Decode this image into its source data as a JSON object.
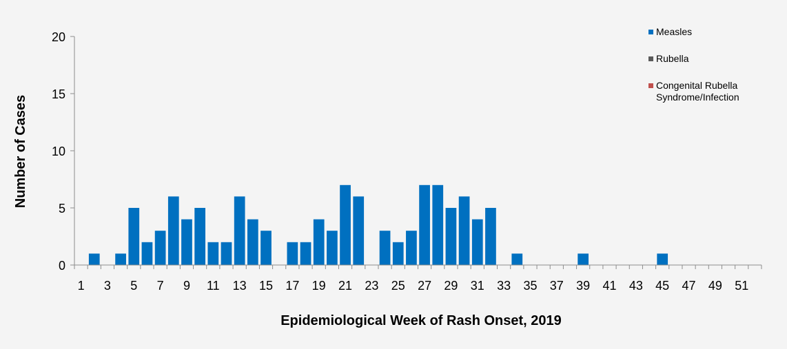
{
  "chart_data": {
    "type": "bar",
    "xlabel": "Epidemiological Week of Rash Onset, 2019",
    "ylabel": "Number of Cases",
    "ylim": [
      0,
      20
    ],
    "yticks": [
      0,
      5,
      10,
      15,
      20
    ],
    "grid": false,
    "legend_position": "top-right",
    "x_tick_labels": [
      "1",
      "3",
      "5",
      "7",
      "9",
      "11",
      "13",
      "15",
      "17",
      "19",
      "21",
      "23",
      "25",
      "27",
      "29",
      "31",
      "33",
      "35",
      "37",
      "39",
      "41",
      "43",
      "45",
      "47",
      "49",
      "51"
    ],
    "categories": [
      1,
      2,
      3,
      4,
      5,
      6,
      7,
      8,
      9,
      10,
      11,
      12,
      13,
      14,
      15,
      16,
      17,
      18,
      19,
      20,
      21,
      22,
      23,
      24,
      25,
      26,
      27,
      28,
      29,
      30,
      31,
      32,
      33,
      34,
      35,
      36,
      37,
      38,
      39,
      40,
      41,
      42,
      43,
      44,
      45,
      46,
      47,
      48,
      49,
      50,
      51,
      52
    ],
    "series": [
      {
        "name": "Measles",
        "color": "#0070c0",
        "values": [
          0,
          1,
          0,
          1,
          5,
          2,
          3,
          6,
          4,
          5,
          2,
          2,
          6,
          4,
          3,
          0,
          2,
          2,
          4,
          3,
          7,
          6,
          0,
          3,
          2,
          3,
          7,
          7,
          5,
          6,
          4,
          5,
          0,
          1,
          0,
          0,
          0,
          0,
          1,
          0,
          0,
          0,
          0,
          0,
          1,
          0,
          0,
          0,
          0,
          0,
          0,
          0
        ]
      },
      {
        "name": "Rubella",
        "color": "#5a5a5a",
        "values": [
          0,
          0,
          0,
          0,
          0,
          0,
          0,
          0,
          0,
          0,
          0,
          0,
          0,
          0,
          0,
          0,
          0,
          0,
          0,
          0,
          0,
          0,
          0,
          0,
          0,
          0,
          0,
          0,
          0,
          0,
          0,
          0,
          0,
          0,
          0,
          0,
          0,
          0,
          0,
          0,
          0,
          0,
          0,
          0,
          0,
          0,
          0,
          0,
          0,
          0,
          0,
          0
        ]
      },
      {
        "name": "Congenital Rubella Syndrome/Infection",
        "color": "#c0504d",
        "values": [
          0,
          0,
          0,
          0,
          0,
          0,
          0,
          0,
          0,
          0,
          0,
          0,
          0,
          0,
          0,
          0,
          0,
          0,
          0,
          0,
          0,
          0,
          0,
          0,
          0,
          0,
          0,
          0,
          0,
          0,
          0,
          0,
          0,
          0,
          0,
          0,
          0,
          0,
          0,
          0,
          0,
          0,
          0,
          0,
          0,
          0,
          0,
          0,
          0,
          0,
          0,
          0
        ]
      }
    ]
  }
}
